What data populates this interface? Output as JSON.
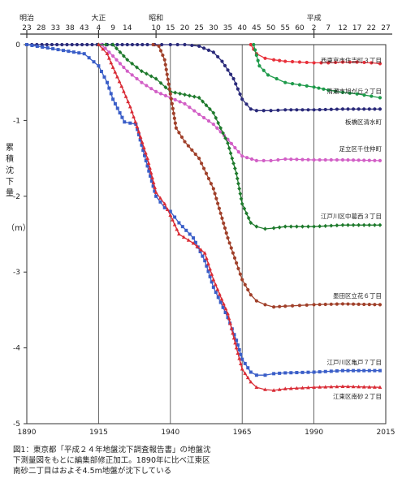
{
  "chart_data": {
    "type": "line",
    "title": "",
    "ylabel": "累積沈下量",
    "yunit": "（m）",
    "xlim": [
      1890,
      2015
    ],
    "ylim": [
      -5,
      0
    ],
    "x_ticks_bottom": [
      1890,
      1915,
      1940,
      1965,
      1990,
      2015
    ],
    "y_ticks": [
      0,
      -1,
      -2,
      -3,
      -4,
      -5
    ],
    "top_eras": [
      {
        "name": "明治",
        "start_year": 1890,
        "ticks": [
          "23",
          "28",
          "33",
          "38",
          "43"
        ]
      },
      {
        "name": "大正",
        "start_year": 1915,
        "ticks": [
          "4",
          "9",
          "14"
        ]
      },
      {
        "name": "昭和",
        "start_year": 1935,
        "ticks": [
          "10",
          "15",
          "20",
          "25",
          "30",
          "35",
          "40",
          "45",
          "50",
          "55",
          "60"
        ]
      },
      {
        "name": "平成",
        "start_year": 1990,
        "ticks": [
          "2",
          "7",
          "12",
          "17",
          "22",
          "27"
        ]
      }
    ],
    "grid": {
      "vertical": true,
      "horizontal": false
    },
    "series": [
      {
        "name": "西東京市住吉町３丁目",
        "color": "#e8303a",
        "marker": "circle",
        "x": [
          1968,
          1970,
          1973,
          1976,
          1980,
          1985,
          1990,
          1995,
          2000,
          2005,
          2010,
          2013
        ],
        "y": [
          0,
          -0.12,
          -0.18,
          -0.2,
          -0.22,
          -0.23,
          -0.24,
          -0.24,
          -0.23,
          -0.23,
          -0.24,
          -0.25
        ]
      },
      {
        "name": "清瀬市旭が丘２丁目",
        "color": "#1e9a4a",
        "marker": "circle",
        "x": [
          1969,
          1971,
          1974,
          1977,
          1980,
          1985,
          1990,
          1995,
          2000,
          2005,
          2010,
          2013
        ],
        "y": [
          0,
          -0.28,
          -0.4,
          -0.45,
          -0.5,
          -0.53,
          -0.56,
          -0.6,
          -0.63,
          -0.65,
          -0.68,
          -0.7
        ]
      },
      {
        "name": "板橋区清水町",
        "color": "#2a2a7a",
        "marker": "circle",
        "x": [
          1890,
          1925,
          1932,
          1937,
          1940,
          1945,
          1950,
          1955,
          1958,
          1962,
          1965,
          1968,
          1970,
          1975,
          1980,
          1990,
          2000,
          2013
        ],
        "y": [
          0,
          0,
          0,
          0,
          0,
          0,
          -0.02,
          -0.1,
          -0.22,
          -0.45,
          -0.72,
          -0.85,
          -0.87,
          -0.87,
          -0.86,
          -0.86,
          -0.85,
          -0.85
        ]
      },
      {
        "name": "足立区千住仲町",
        "color": "#d25fc6",
        "marker": "circle",
        "x": [
          1916,
          1920,
          1925,
          1930,
          1935,
          1940,
          1945,
          1950,
          1955,
          1960,
          1965,
          1970,
          1975,
          1980,
          1990,
          2000,
          2013
        ],
        "y": [
          0,
          -0.15,
          -0.35,
          -0.5,
          -0.62,
          -0.7,
          -0.78,
          -0.92,
          -1.05,
          -1.25,
          -1.47,
          -1.53,
          -1.53,
          -1.51,
          -1.52,
          -1.52,
          -1.53
        ]
      },
      {
        "name": "江戸川区中葛西３丁目",
        "color": "#1e7a2c",
        "marker": "diamond",
        "x": [
          1915,
          1920,
          1925,
          1930,
          1935,
          1940,
          1945,
          1950,
          1955,
          1960,
          1963,
          1965,
          1968,
          1970,
          1973,
          1976,
          1980,
          1990,
          2000,
          2013
        ],
        "y": [
          0,
          0,
          -0.2,
          -0.35,
          -0.45,
          -0.62,
          -0.66,
          -0.7,
          -0.9,
          -1.3,
          -1.7,
          -2.1,
          -2.35,
          -2.4,
          -2.43,
          -2.42,
          -2.4,
          -2.4,
          -2.38,
          -2.38
        ]
      },
      {
        "name": "墨田区立花６丁目",
        "color": "#a0402a",
        "marker": "circle",
        "x": [
          1934,
          1936,
          1938,
          1940,
          1942,
          1945,
          1950,
          1955,
          1960,
          1963,
          1965,
          1968,
          1970,
          1973,
          1976,
          1980,
          1985,
          1990,
          2000,
          2013
        ],
        "y": [
          0,
          -0.02,
          -0.2,
          -0.65,
          -1.1,
          -1.28,
          -1.5,
          -1.9,
          -2.55,
          -2.88,
          -3.1,
          -3.3,
          -3.38,
          -3.43,
          -3.46,
          -3.45,
          -3.44,
          -3.43,
          -3.42,
          -3.43
        ]
      },
      {
        "name": "江戸川区亀戸７丁目",
        "color": "#3a5ec8",
        "marker": "square",
        "x": [
          1890,
          1910,
          1915,
          1918,
          1920,
          1924,
          1928,
          1932,
          1935,
          1938,
          1940,
          1943,
          1948,
          1952,
          1955,
          1960,
          1963,
          1965,
          1968,
          1970,
          1973,
          1976,
          1980,
          1990,
          2000,
          2013
        ],
        "y": [
          0,
          -0.12,
          -0.28,
          -0.5,
          -0.72,
          -1.02,
          -1.05,
          -1.6,
          -2.0,
          -2.15,
          -2.2,
          -2.35,
          -2.55,
          -2.85,
          -3.2,
          -3.6,
          -3.9,
          -4.15,
          -4.32,
          -4.36,
          -4.36,
          -4.34,
          -4.33,
          -4.32,
          -4.3,
          -4.3
        ]
      },
      {
        "name": "江東区南砂２丁目",
        "color": "#d92b35",
        "marker": "triangle",
        "x": [
          1915,
          1918,
          1920,
          1923,
          1926,
          1929,
          1932,
          1935,
          1938,
          1940,
          1943,
          1948,
          1952,
          1955,
          1960,
          1963,
          1965,
          1968,
          1970,
          1973,
          1976,
          1980,
          1990,
          2000,
          2013
        ],
        "y": [
          0,
          -0.12,
          -0.3,
          -0.55,
          -0.82,
          -1.15,
          -1.5,
          -1.95,
          -2.1,
          -2.25,
          -2.5,
          -2.62,
          -2.75,
          -3.1,
          -3.55,
          -4.0,
          -4.28,
          -4.45,
          -4.52,
          -4.55,
          -4.56,
          -4.54,
          -4.52,
          -4.51,
          -4.52
        ]
      }
    ],
    "line_labels": [
      {
        "text": "西東京市住吉町３丁目",
        "series": 0
      },
      {
        "text": "清瀬市旭が丘２丁目",
        "series": 1
      },
      {
        "text": "板橋区清水町",
        "series": 2
      },
      {
        "text": "足立区千住仲町",
        "series": 3
      },
      {
        "text": "江戸川区中葛西３丁目",
        "series": 4
      },
      {
        "text": "墨田区立花６丁目",
        "series": 5
      },
      {
        "text": "江戸川区亀戸７丁目",
        "series": 6
      },
      {
        "text": "江東区南砂２丁目",
        "series": 7
      }
    ]
  },
  "caption": {
    "line1": "図1：東京都「平成２４年地盤沈下調査報告書」の地盤沈",
    "line2": "下測量図をもとに編集部修正加工。1890年に比べ江東区",
    "line3": "南砂二丁目はおよそ4.5m地盤が沈下している"
  }
}
